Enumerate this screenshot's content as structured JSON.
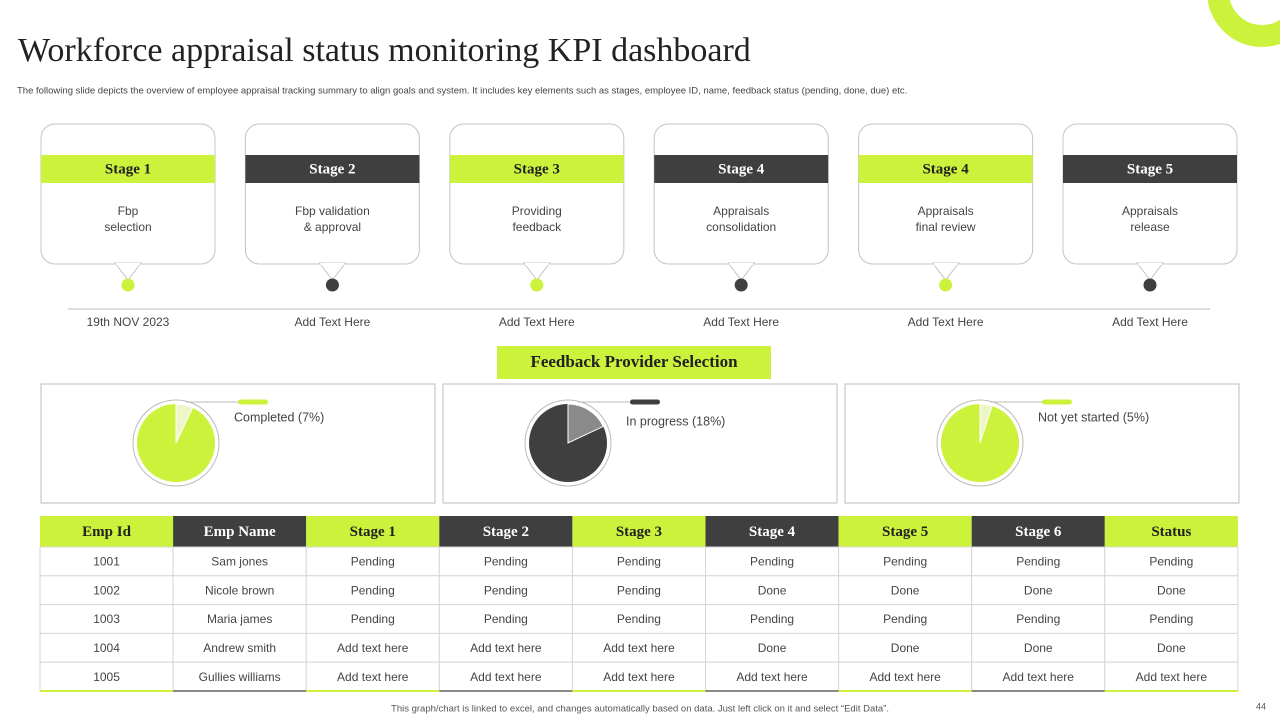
{
  "header": {
    "title": "Workforce appraisal status monitoring KPI dashboard",
    "subtitle": "The following slide depicts the overview of employee appraisal tracking summary to align goals and system. It includes key elements such as stages, employee ID,  name,  feedback status (pending, done, due) etc."
  },
  "stages": [
    {
      "label": "Stage 1",
      "text": [
        "Fbp",
        "selection"
      ],
      "date": "19th NOV 2023"
    },
    {
      "label": "Stage 2",
      "text": [
        "Fbp validation",
        "& approval"
      ],
      "date": "Add Text Here"
    },
    {
      "label": "Stage 3",
      "text": [
        "Providing",
        "feedback"
      ],
      "date": "Add Text Here"
    },
    {
      "label": "Stage 4",
      "text": [
        "Appraisals",
        "consolidation"
      ],
      "date": "Add Text Here"
    },
    {
      "label": "Stage 4",
      "text": [
        "Appraisals",
        "final review"
      ],
      "date": "Add Text Here"
    },
    {
      "label": "Stage 5",
      "text": [
        "Appraisals",
        "release"
      ],
      "date": "Add Text Here"
    }
  ],
  "section_title": "Feedback Provider Selection",
  "chart_data": [
    {
      "type": "pie",
      "values": [
        7
      ],
      "value_labels": [
        "Completed (7%)"
      ],
      "colors": [
        "#eef6c8"
      ],
      "base_color": "#ccf23b"
    },
    {
      "type": "pie",
      "values": [
        18
      ],
      "value_labels": [
        "In progress (18%)"
      ],
      "colors": [
        "#8a8a8a"
      ],
      "base_color": "#3f3f3f"
    },
    {
      "type": "pie",
      "values": [
        5
      ],
      "value_labels": [
        "Not yet started (5%)"
      ],
      "colors": [
        "#eef6c8"
      ],
      "base_color": "#ccf23b"
    }
  ],
  "table": {
    "columns": [
      "Emp Id",
      "Emp Name",
      "Stage 1",
      "Stage 2",
      "Stage 3",
      "Stage 4",
      "Stage 5",
      "Stage 6",
      "Status"
    ],
    "rows": [
      [
        "1001",
        "Sam jones",
        "Pending",
        "Pending",
        "Pending",
        "Pending",
        "Pending",
        "Pending",
        "Pending"
      ],
      [
        "1002",
        "Nicole brown",
        "Pending",
        "Pending",
        "Pending",
        "Done",
        "Done",
        "Done",
        "Done"
      ],
      [
        "1003",
        "Maria james",
        "Pending",
        "Pending",
        "Pending",
        "Pending",
        "Pending",
        "Pending",
        "Pending"
      ],
      [
        "1004",
        "Andrew smith",
        "Add text here",
        "Add text here",
        "Add text here",
        "Done",
        "Done",
        "Done",
        "Done"
      ],
      [
        "1005",
        "Gullies williams",
        "Add text here",
        "Add text here",
        "Add text here",
        "Add text here",
        "Add text here",
        "Add text here",
        "Add text here"
      ]
    ]
  },
  "footer": {
    "note": "This graph/chart is linked to excel, and changes automatically based on data. Just left click on it and select “Edit Data”.",
    "page": "44"
  }
}
